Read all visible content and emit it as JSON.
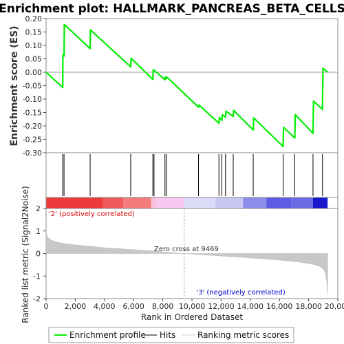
{
  "chart_data": {
    "type": "line",
    "title": "Enrichment plot: HALLMARK_PANCREAS_BETA_CELLS",
    "panels": {
      "enrichment": {
        "ylabel": "Enrichment score (ES)",
        "ylim": [
          -0.3,
          0.2
        ],
        "yticks": [
          "0.20",
          "0.15",
          "0.10",
          "0.05",
          "0.00",
          "-0.05",
          "-0.10",
          "-0.15",
          "-0.20",
          "-0.25",
          "-0.30"
        ],
        "ytick_values": [
          0.2,
          0.15,
          0.1,
          0.05,
          0.0,
          -0.05,
          -0.1,
          -0.15,
          -0.2,
          -0.25,
          -0.3
        ],
        "series": [
          {
            "name": "Enrichment profile",
            "color": "#00ee00",
            "x": [
              0,
              1140,
              1150,
              1230,
              1250,
              3020,
              3040,
              5800,
              5830,
              7320,
              7350,
              8150,
              8170,
              8250,
              8280,
              10450,
              10480,
              11850,
              11880,
              12050,
              12080,
              12300,
              12330,
              12830,
              12860,
              14200,
              14230,
              16250,
              16280,
              17050,
              17080,
              18300,
              18330,
              18950,
              18980,
              19300
            ],
            "values": [
              0.0,
              -0.057,
              0.065,
              0.06,
              0.178,
              0.088,
              0.158,
              0.02,
              0.052,
              -0.027,
              0.01,
              -0.028,
              -0.018,
              -0.024,
              -0.018,
              -0.13,
              -0.122,
              -0.19,
              -0.168,
              -0.18,
              -0.158,
              -0.167,
              -0.145,
              -0.165,
              -0.142,
              -0.215,
              -0.17,
              -0.277,
              -0.205,
              -0.245,
              -0.158,
              -0.228,
              -0.108,
              -0.138,
              0.015,
              0.0
            ]
          }
        ]
      },
      "hits": {
        "name": "Hits",
        "positions": [
          1140,
          1230,
          3020,
          5800,
          7320,
          7400,
          8150,
          8250,
          10450,
          11850,
          12050,
          12300,
          12830,
          14200,
          16250,
          17050,
          18300,
          18950
        ]
      },
      "ranked_metric": {
        "name": "Ranking metric scores",
        "ylabel": "Ranked list metric (Signal2Noise)",
        "ylim": [
          -2,
          2
        ],
        "yticks": [
          "2",
          "1",
          "0",
          "-1",
          "-2"
        ],
        "ytick_values": [
          2,
          1,
          0,
          -1,
          -2
        ],
        "x": [
          0,
          60,
          150,
          300,
          600,
          1000,
          1500,
          2500,
          4000,
          6000,
          8000,
          9469,
          11000,
          13000,
          15000,
          16500,
          17500,
          18300,
          18800,
          19050,
          19150,
          19250,
          19300
        ],
        "values": [
          1.0,
          0.8,
          0.7,
          0.62,
          0.53,
          0.47,
          0.42,
          0.35,
          0.26,
          0.17,
          0.08,
          0.0,
          -0.07,
          -0.15,
          -0.24,
          -0.32,
          -0.39,
          -0.48,
          -0.58,
          -0.72,
          -0.9,
          -1.3,
          -1.8
        ],
        "zero_cross_x": 9469,
        "annotations": {
          "zero_cross": "Zero cross at 9469",
          "positive": "'2' (positively correlated)",
          "negative": "'3' (negatively correlated)"
        },
        "positive_color": "#dd0000",
        "negative_color": "#0000cc"
      }
    },
    "xlabel": "Rank in Ordered Dataset",
    "xlim": [
      0,
      20000
    ],
    "xticks": [
      "0",
      "2,000",
      "4,000",
      "6,000",
      "8,000",
      "10,000",
      "12,000",
      "14,000",
      "16,000",
      "18,000",
      "20,000"
    ],
    "xtick_values": [
      0,
      2000,
      4000,
      6000,
      8000,
      10000,
      12000,
      14000,
      16000,
      18000,
      20000
    ],
    "gradient_bar": {
      "segments": [
        {
          "x0": 0,
          "x1": 3900,
          "color": "#ee3a3a"
        },
        {
          "x0": 3900,
          "x1": 5300,
          "color": "#f05a5a"
        },
        {
          "x0": 5300,
          "x1": 7200,
          "color": "#f47c7c"
        },
        {
          "x0": 7200,
          "x1": 7500,
          "color": "#f8c0d8"
        },
        {
          "x0": 7500,
          "x1": 9469,
          "color": "#f8c8f0"
        },
        {
          "x0": 9469,
          "x1": 11600,
          "color": "#dcdcf8"
        },
        {
          "x0": 11600,
          "x1": 13500,
          "color": "#c8c8f4"
        },
        {
          "x0": 13500,
          "x1": 15100,
          "color": "#8c8cec"
        },
        {
          "x0": 15100,
          "x1": 16800,
          "color": "#5c5ce4"
        },
        {
          "x0": 16800,
          "x1": 18300,
          "color": "#6a6ae6"
        },
        {
          "x0": 18300,
          "x1": 19300,
          "color": "#1818cc"
        }
      ]
    },
    "legend": {
      "placement": "bottom",
      "items": [
        {
          "label": "Enrichment profile",
          "color": "#00ee00"
        },
        {
          "label": "Hits",
          "color": "#000000"
        },
        {
          "label": "Ranking metric scores",
          "color": "#cccccc"
        }
      ]
    },
    "grid": false
  }
}
